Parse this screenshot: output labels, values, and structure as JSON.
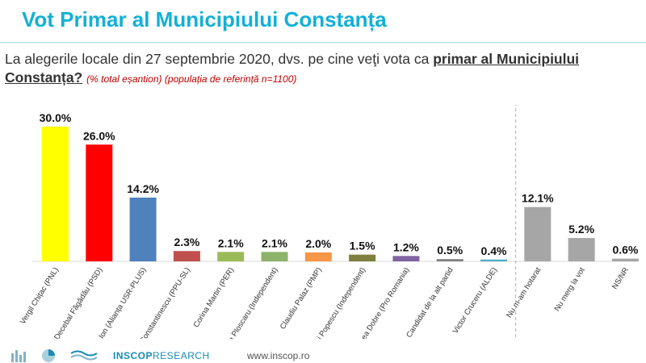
{
  "header": {
    "title": "Vot Primar al Municipiului Constanța"
  },
  "question": {
    "text": "La alegerile locale din 27 septembrie 2020, dvs. pe cine veţi vota ca ",
    "bold": "primar al Municipiului Constanța?",
    "note": "(% total eșantion) (populația de referință n=1100)"
  },
  "chart_data": {
    "type": "bar",
    "title": "",
    "xlabel": "",
    "ylabel": "",
    "ylim": [
      0,
      30
    ],
    "grid": false,
    "categories": [
      "Vergil Chițac (PNL)",
      "Decebal Făgădău (PSD)",
      "Stelian Ion (Alianța USR-PLUS)",
      "Horia Constantinescu (PPU-SL)",
      "Corina Martin (PER)",
      "Nicoleta Ploscaru (Independent)",
      "Claudiu Palaz (PMP)",
      "Andrei Popescu (Independent)",
      "Mircea Dobre (Pro Romania)",
      "Candidat de la alt partid",
      "Victor Cruceru (ALDE)",
      "Nu m-am hotarat",
      "Nu merg la vot",
      "NS/NR"
    ],
    "values": [
      30.0,
      26.0,
      14.2,
      2.3,
      2.1,
      2.1,
      2.0,
      1.5,
      1.2,
      0.5,
      0.4,
      12.1,
      5.2,
      0.6
    ],
    "value_labels": [
      "30.0%",
      "26.0%",
      "14.2%",
      "2.3%",
      "2.1%",
      "2.1%",
      "2.0%",
      "1.5%",
      "1.2%",
      "0.5%",
      "0.4%",
      "12.1%",
      "5.2%",
      "0.6%"
    ],
    "colors": [
      "#ffff00",
      "#ff0000",
      "#4f81bd",
      "#c0504d",
      "#9bbb59",
      "#8db36b",
      "#f79646",
      "#7f7f3f",
      "#8064a2",
      "#7f7f7f",
      "#4bacc6",
      "#a6a6a6",
      "#a6a6a6",
      "#a6a6a6"
    ],
    "separator_after_index": 10
  },
  "footer": {
    "brand_bold": "INSCOP",
    "brand_light": "RESEARCH",
    "url": "www.inscop.ro"
  }
}
